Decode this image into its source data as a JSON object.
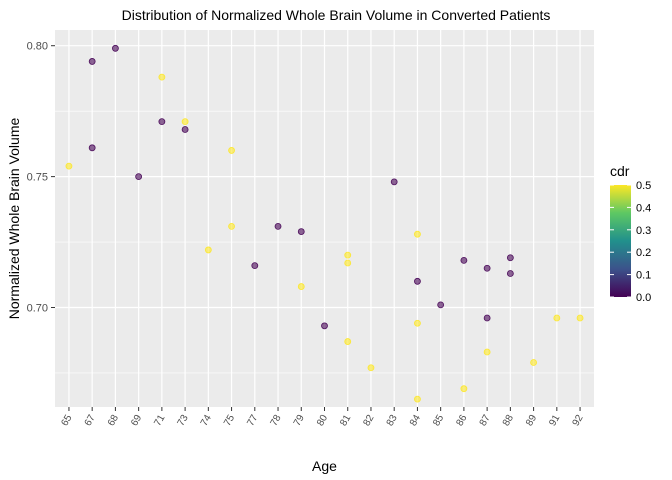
{
  "chart_data": {
    "type": "scatter",
    "title": "Distribution of Normalized Whole Brain Volume in Converted Patients",
    "xlabel": "Age",
    "ylabel": "Normalized Whole Brain Volume",
    "x_categories": [
      "65",
      "67",
      "68",
      "69",
      "71",
      "73",
      "74",
      "75",
      "77",
      "78",
      "79",
      "80",
      "81",
      "82",
      "83",
      "84",
      "85",
      "86",
      "87",
      "88",
      "89",
      "91",
      "92"
    ],
    "ylim": [
      0.662,
      0.806
    ],
    "y_ticks": [
      0.7,
      0.75,
      0.8
    ],
    "y_tick_labels": [
      "0.70",
      "0.75",
      "0.80"
    ],
    "grid": true,
    "x_tick_rotation": "diagonal",
    "legend": {
      "title": "cdr",
      "position": "right",
      "range": [
        0.0,
        0.5
      ],
      "ticks": [
        "0.0",
        "0.1",
        "0.2",
        "0.3",
        "0.4",
        "0.5"
      ],
      "colormap": [
        "#440154",
        "#3b528b",
        "#21908c",
        "#5dc863",
        "#fde725"
      ]
    },
    "points": [
      {
        "x": "65",
        "y": 0.754,
        "cdr": 0.5
      },
      {
        "x": "67",
        "y": 0.794,
        "cdr": 0.0
      },
      {
        "x": "67",
        "y": 0.761,
        "cdr": 0.0
      },
      {
        "x": "68",
        "y": 0.799,
        "cdr": 0.0
      },
      {
        "x": "69",
        "y": 0.75,
        "cdr": 0.0
      },
      {
        "x": "71",
        "y": 0.788,
        "cdr": 0.5
      },
      {
        "x": "71",
        "y": 0.771,
        "cdr": 0.0
      },
      {
        "x": "73",
        "y": 0.771,
        "cdr": 0.5
      },
      {
        "x": "73",
        "y": 0.768,
        "cdr": 0.0
      },
      {
        "x": "74",
        "y": 0.722,
        "cdr": 0.5
      },
      {
        "x": "75",
        "y": 0.76,
        "cdr": 0.5
      },
      {
        "x": "75",
        "y": 0.731,
        "cdr": 0.5
      },
      {
        "x": "77",
        "y": 0.716,
        "cdr": 0.0
      },
      {
        "x": "78",
        "y": 0.731,
        "cdr": 0.0
      },
      {
        "x": "79",
        "y": 0.729,
        "cdr": 0.0
      },
      {
        "x": "79",
        "y": 0.708,
        "cdr": 0.5
      },
      {
        "x": "80",
        "y": 0.693,
        "cdr": 0.0
      },
      {
        "x": "81",
        "y": 0.72,
        "cdr": 0.5
      },
      {
        "x": "81",
        "y": 0.717,
        "cdr": 0.5
      },
      {
        "x": "81",
        "y": 0.687,
        "cdr": 0.5
      },
      {
        "x": "82",
        "y": 0.677,
        "cdr": 0.5
      },
      {
        "x": "83",
        "y": 0.748,
        "cdr": 0.0
      },
      {
        "x": "84",
        "y": 0.728,
        "cdr": 0.5
      },
      {
        "x": "84",
        "y": 0.71,
        "cdr": 0.0
      },
      {
        "x": "84",
        "y": 0.694,
        "cdr": 0.5
      },
      {
        "x": "84",
        "y": 0.665,
        "cdr": 0.5
      },
      {
        "x": "85",
        "y": 0.701,
        "cdr": 0.0
      },
      {
        "x": "86",
        "y": 0.718,
        "cdr": 0.0
      },
      {
        "x": "86",
        "y": 0.669,
        "cdr": 0.5
      },
      {
        "x": "87",
        "y": 0.715,
        "cdr": 0.0
      },
      {
        "x": "87",
        "y": 0.696,
        "cdr": 0.0
      },
      {
        "x": "87",
        "y": 0.683,
        "cdr": 0.5
      },
      {
        "x": "88",
        "y": 0.719,
        "cdr": 0.0
      },
      {
        "x": "88",
        "y": 0.713,
        "cdr": 0.0
      },
      {
        "x": "89",
        "y": 0.679,
        "cdr": 0.5
      },
      {
        "x": "91",
        "y": 0.696,
        "cdr": 0.5
      },
      {
        "x": "92",
        "y": 0.696,
        "cdr": 0.5
      }
    ]
  }
}
